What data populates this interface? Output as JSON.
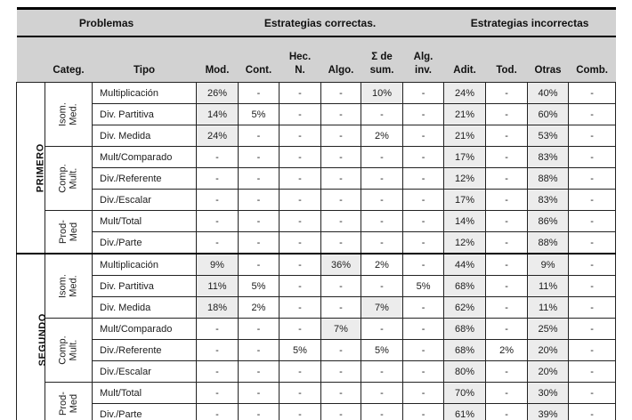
{
  "colors": {
    "header_bg": "#d2d2d2",
    "shaded_cell_bg": "#ececec",
    "border": "#000000"
  },
  "table": {
    "group_headers": [
      {
        "label": "Problemas",
        "colspan": 3
      },
      {
        "label": "Estrategias correctas.",
        "colspan": 6
      },
      {
        "label": "Estrategias incorrectas",
        "colspan": 4
      }
    ],
    "corner_header": "",
    "categ_header": "Categ.",
    "tipo_header": "Tipo",
    "value_columns": [
      "Mod.",
      "Cont.",
      "Hec.\nN.",
      "Algo.",
      "Σ de\nsum.",
      "Alg.\ninv.",
      "Adit.",
      "Tod.",
      "Otras",
      "Comb."
    ],
    "empty_cell": "-",
    "sections": [
      {
        "grade": "PRIMERO",
        "groups": [
          {
            "category": "Isom. Med.",
            "rows": [
              {
                "tipo": "Multiplicación",
                "values": [
                  "26%",
                  "-",
                  "-",
                  "-",
                  "10%",
                  "-",
                  "24%",
                  "-",
                  "40%",
                  "-"
                ],
                "shaded": [
                  1,
                  0,
                  0,
                  0,
                  1,
                  0,
                  1,
                  0,
                  1,
                  0
                ]
              },
              {
                "tipo": "Div. Partitiva",
                "values": [
                  "14%",
                  "5%",
                  "-",
                  "-",
                  "-",
                  "-",
                  "21%",
                  "-",
                  "60%",
                  "-"
                ],
                "shaded": [
                  1,
                  0,
                  0,
                  0,
                  0,
                  0,
                  1,
                  0,
                  1,
                  0
                ]
              },
              {
                "tipo": "Div. Medida",
                "values": [
                  "24%",
                  "-",
                  "-",
                  "-",
                  "2%",
                  "-",
                  "21%",
                  "-",
                  "53%",
                  "-"
                ],
                "shaded": [
                  1,
                  0,
                  0,
                  0,
                  0,
                  0,
                  1,
                  0,
                  1,
                  0
                ]
              }
            ]
          },
          {
            "category": "Comp. Mult.",
            "rows": [
              {
                "tipo": "Mult/Comparado",
                "values": [
                  "-",
                  "-",
                  "-",
                  "-",
                  "-",
                  "-",
                  "17%",
                  "-",
                  "83%",
                  "-"
                ],
                "shaded": [
                  0,
                  0,
                  0,
                  0,
                  0,
                  0,
                  1,
                  0,
                  1,
                  0
                ]
              },
              {
                "tipo": "Div./Referente",
                "values": [
                  "-",
                  "-",
                  "-",
                  "-",
                  "-",
                  "-",
                  "12%",
                  "-",
                  "88%",
                  "-"
                ],
                "shaded": [
                  0,
                  0,
                  0,
                  0,
                  0,
                  0,
                  1,
                  0,
                  1,
                  0
                ]
              },
              {
                "tipo": "Div./Escalar",
                "values": [
                  "-",
                  "-",
                  "-",
                  "-",
                  "-",
                  "-",
                  "17%",
                  "-",
                  "83%",
                  "-"
                ],
                "shaded": [
                  0,
                  0,
                  0,
                  0,
                  0,
                  0,
                  1,
                  0,
                  1,
                  0
                ]
              }
            ]
          },
          {
            "category": "Prod-\nMed",
            "rows": [
              {
                "tipo": "Mult/Total",
                "values": [
                  "-",
                  "-",
                  "-",
                  "-",
                  "-",
                  "-",
                  "14%",
                  "-",
                  "86%",
                  "-"
                ],
                "shaded": [
                  0,
                  0,
                  0,
                  0,
                  0,
                  0,
                  1,
                  0,
                  1,
                  0
                ]
              },
              {
                "tipo": "Div./Parte",
                "values": [
                  "-",
                  "-",
                  "-",
                  "-",
                  "-",
                  "-",
                  "12%",
                  "-",
                  "88%",
                  "-"
                ],
                "shaded": [
                  0,
                  0,
                  0,
                  0,
                  0,
                  0,
                  1,
                  0,
                  1,
                  0
                ]
              }
            ]
          }
        ]
      },
      {
        "grade": "SEGUNDO",
        "groups": [
          {
            "category": "Isom. Med.",
            "rows": [
              {
                "tipo": "Multiplicación",
                "values": [
                  "9%",
                  "-",
                  "-",
                  "36%",
                  "2%",
                  "-",
                  "44%",
                  "-",
                  "9%",
                  "-"
                ],
                "shaded": [
                  1,
                  0,
                  0,
                  1,
                  0,
                  0,
                  1,
                  0,
                  1,
                  0
                ]
              },
              {
                "tipo": "Div. Partitiva",
                "values": [
                  "11%",
                  "5%",
                  "-",
                  "-",
                  "-",
                  "5%",
                  "68%",
                  "-",
                  "11%",
                  "-"
                ],
                "shaded": [
                  1,
                  0,
                  0,
                  0,
                  0,
                  0,
                  1,
                  0,
                  1,
                  0
                ]
              },
              {
                "tipo": "Div. Medida",
                "values": [
                  "18%",
                  "2%",
                  "-",
                  "-",
                  "7%",
                  "-",
                  "62%",
                  "-",
                  "11%",
                  "-"
                ],
                "shaded": [
                  1,
                  0,
                  0,
                  0,
                  1,
                  0,
                  1,
                  0,
                  1,
                  0
                ]
              }
            ]
          },
          {
            "category": "Comp. Mult.",
            "rows": [
              {
                "tipo": "Mult/Comparado",
                "values": [
                  "-",
                  "-",
                  "-",
                  "7%",
                  "-",
                  "-",
                  "68%",
                  "-",
                  "25%",
                  "-"
                ],
                "shaded": [
                  0,
                  0,
                  0,
                  1,
                  0,
                  0,
                  1,
                  0,
                  1,
                  0
                ]
              },
              {
                "tipo": "Div./Referente",
                "values": [
                  "-",
                  "-",
                  "5%",
                  "-",
                  "5%",
                  "-",
                  "68%",
                  "2%",
                  "20%",
                  "-"
                ],
                "shaded": [
                  0,
                  0,
                  0,
                  0,
                  0,
                  0,
                  1,
                  0,
                  1,
                  0
                ]
              },
              {
                "tipo": "Div./Escalar",
                "values": [
                  "-",
                  "-",
                  "-",
                  "-",
                  "-",
                  "-",
                  "80%",
                  "-",
                  "20%",
                  "-"
                ],
                "shaded": [
                  0,
                  0,
                  0,
                  0,
                  0,
                  0,
                  1,
                  0,
                  1,
                  0
                ]
              }
            ]
          },
          {
            "category": "Prod-\nMed",
            "rows": [
              {
                "tipo": "Mult/Total",
                "values": [
                  "-",
                  "-",
                  "-",
                  "-",
                  "-",
                  "-",
                  "70%",
                  "-",
                  "30%",
                  "-"
                ],
                "shaded": [
                  0,
                  0,
                  0,
                  0,
                  0,
                  0,
                  1,
                  0,
                  1,
                  0
                ]
              },
              {
                "tipo": "Div./Parte",
                "values": [
                  "-",
                  "-",
                  "-",
                  "-",
                  "-",
                  "-",
                  "61%",
                  "-",
                  "39%",
                  "-"
                ],
                "shaded": [
                  0,
                  0,
                  0,
                  0,
                  0,
                  0,
                  1,
                  0,
                  1,
                  0
                ]
              }
            ]
          }
        ]
      }
    ]
  }
}
